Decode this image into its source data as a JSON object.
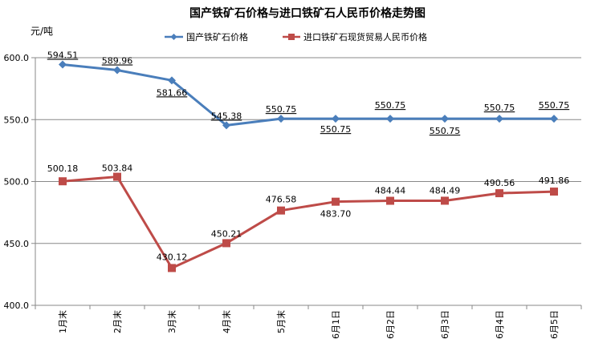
{
  "chart_data": {
    "type": "line",
    "title": "国产铁矿石价格与进口铁矿石人民币价格走势图",
    "ylabel": "元/吨",
    "xlabel": "",
    "categories": [
      "1月末",
      "2月末",
      "3月末",
      "4月末",
      "5月末",
      "6月1日",
      "6月2日",
      "6月3日",
      "6月4日",
      "6月5日"
    ],
    "ylim": [
      400,
      600
    ],
    "yticks": [
      "400.0",
      "450.0",
      "500.0",
      "550.0",
      "600.0"
    ],
    "grid": "horizontal",
    "legend": "top",
    "series": [
      {
        "name": "国产铁矿石价格",
        "color": "#4a7ebb",
        "marker": "diamond",
        "values": [
          594.51,
          589.96,
          581.66,
          545.38,
          550.75,
          550.75,
          550.75,
          550.75,
          550.75,
          550.75
        ],
        "labels": [
          "594.51",
          "589.96",
          "581.66",
          "545.38",
          "550.75",
          "550.75",
          "550.75",
          "550.75",
          "550.75",
          "550.75"
        ]
      },
      {
        "name": "进口铁矿石现货贸易人民币价格",
        "color": "#be4b48",
        "marker": "square",
        "values": [
          500.18,
          503.84,
          430.12,
          450.21,
          476.58,
          483.7,
          484.44,
          484.49,
          490.56,
          491.86
        ],
        "labels": [
          "500.18",
          "503.84",
          "430.12",
          "450.21",
          "476.58",
          "483.70",
          "484.44",
          "484.49",
          "490.56",
          "491.86"
        ]
      }
    ]
  }
}
